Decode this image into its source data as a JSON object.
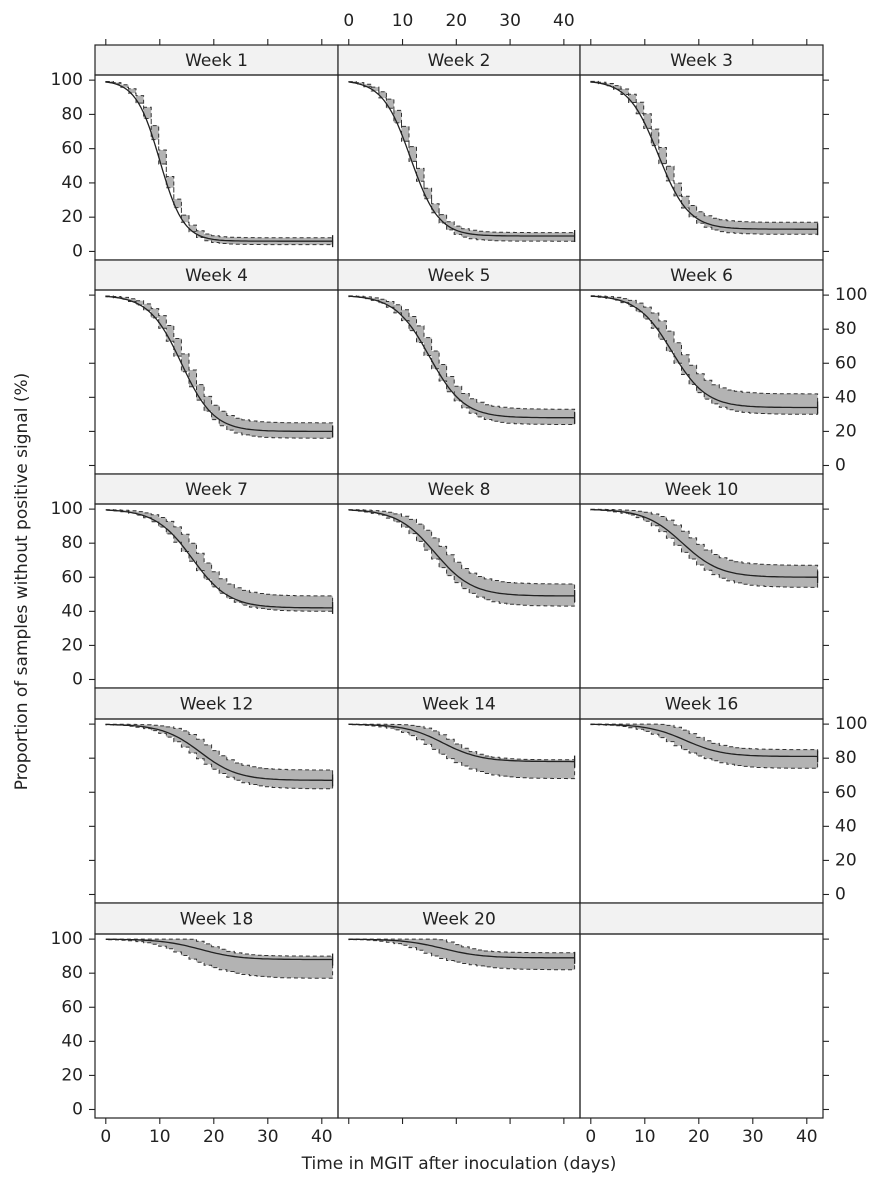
{
  "chart_data": {
    "type": "line",
    "xlabel": "Time in MGIT after inoculation (days)",
    "ylabel": "Proportion of samples without positive signal (%)",
    "xlim": [
      -2,
      43
    ],
    "ylim": [
      -5,
      103
    ],
    "x_ticks": [
      0,
      10,
      20,
      30,
      40
    ],
    "y_ticks": [
      0,
      20,
      40,
      60,
      80,
      100
    ],
    "layout": "5 rows x 3 columns trellis; one panel per week",
    "legend": "none",
    "panels": [
      {
        "title": "Week 1",
        "midpoint_day": 10,
        "spread": 2.2,
        "plateau": 6,
        "band_lower": 4,
        "band_upper": 8
      },
      {
        "title": "Week 2",
        "midpoint_day": 11.5,
        "spread": 2.6,
        "plateau": 9,
        "band_lower": 6,
        "band_upper": 11
      },
      {
        "title": "Week 3",
        "midpoint_day": 12.5,
        "spread": 2.8,
        "plateau": 13,
        "band_lower": 10,
        "band_upper": 17
      },
      {
        "title": "Week 4",
        "midpoint_day": 14,
        "spread": 3.0,
        "plateau": 20,
        "band_lower": 16,
        "band_upper": 25
      },
      {
        "title": "Week 5",
        "midpoint_day": 15,
        "spread": 3.2,
        "plateau": 28,
        "band_lower": 24,
        "band_upper": 33
      },
      {
        "title": "Week 6",
        "midpoint_day": 15,
        "spread": 3.2,
        "plateau": 34,
        "band_lower": 30,
        "band_upper": 42
      },
      {
        "title": "Week 7",
        "midpoint_day": 16,
        "spread": 3.4,
        "plateau": 42,
        "band_lower": 40,
        "band_upper": 49
      },
      {
        "title": "Week 8",
        "midpoint_day": 16,
        "spread": 3.5,
        "plateau": 49,
        "band_lower": 43,
        "band_upper": 56
      },
      {
        "title": "Week 10",
        "midpoint_day": 17,
        "spread": 3.5,
        "plateau": 60,
        "band_lower": 54,
        "band_upper": 67
      },
      {
        "title": "Week 12",
        "midpoint_day": 17.5,
        "spread": 3.5,
        "plateau": 67,
        "band_lower": 62,
        "band_upper": 73
      },
      {
        "title": "Week 14",
        "midpoint_day": 17.5,
        "spread": 3.5,
        "plateau": 78,
        "band_lower": 68,
        "band_upper": 79
      },
      {
        "title": "Week 16",
        "midpoint_day": 17.5,
        "spread": 3.5,
        "plateau": 81,
        "band_lower": 74,
        "band_upper": 85
      },
      {
        "title": "Week 18",
        "midpoint_day": 17.5,
        "spread": 3.6,
        "plateau": 88,
        "band_lower": 77,
        "band_upper": 90
      },
      {
        "title": "Week 20",
        "midpoint_day": 17.5,
        "spread": 3.6,
        "plateau": 89,
        "band_lower": 82,
        "band_upper": 92
      }
    ]
  }
}
